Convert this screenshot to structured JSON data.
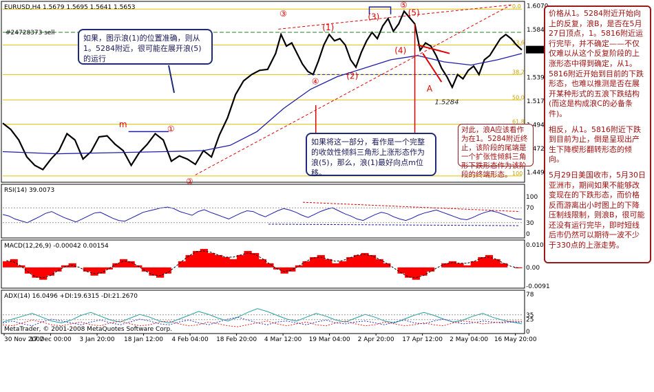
{
  "symbol_header": "EURUSD,H4  1.5679 1.5695 1.5641 1.5653",
  "order_label": "#24728373 sell",
  "copyright": "MetaTrader, © 2001-2008 MetaQuotes Software Corp.",
  "colors": {
    "price_line": "#000000",
    "ma_line": "#1c1ca8",
    "macd_fill": "#ff0000",
    "fib_line": "#e0c000",
    "annotation_red": "#e00000",
    "note_border": "#1e2a78",
    "side_border": "#9a1818"
  },
  "notes": {
    "top_left": "如果，图示浪(1)的位置准确，则从1。5284附近，很可能在展开浪(5)的运行",
    "bottom_middle": "如果将这一部分，看作是一个完整的收敛性倾斜三角形上涨形态作为浪(5)，那么，浪(1)最好向点m位移。",
    "right_small": "对此，浪A应该看作为在1。5284附近终止，该阶段的尾端是一个扩张性倾斜三角形下跌形态作为该阶段的终端形态。"
  },
  "side_panel": {
    "p1": "价格从1。5284附近开始向上的反复，浪B，是否在5月27日顶点，1。5816附近运行完毕，并不确定——不仅仅难以从这个反复阶段的上涨形态中得到确定，从1。5816附近开始到目前的下跌形态，也难以推测是否在展开某种形式的五浪下跌结构(而这是构成浪C的必备条件)。",
    "p2": "相反，从1。5816附近下跌到目前为止，倒是呈现出产生下降楔形翻转形态的倾向。",
    "p3": "5月29日美国收市，5月30日亚洲市，期间如果不能够改变现在的下跌形态，而价格反而游离出小时图上的下降压制线限制，则浪B，很可能还没有运行完毕，即时短线后市仍然可以期待一波不少于330点的上涨走势。"
  },
  "wave_labels": {
    "w3": "③",
    "w5": "⑤",
    "w4": "④",
    "w2": "②",
    "w1": "①",
    "p1": "(1)",
    "p2": "(2)",
    "p3": "(3)",
    "p4": "(4)",
    "p5": "(5)",
    "A": "A",
    "m": "m",
    "low_value": "1.5284"
  },
  "chart_data": [
    {
      "type": "line",
      "title": "EURUSD,H4",
      "x_ticks": [
        "30 Nov 2007",
        "17 Dec 00:00",
        "3 Jan 20:00",
        "18 Jan 12:00",
        "4 Feb 04:00",
        "18 Feb 20:00",
        "4 Mar 12:00",
        "19 Mar 04:00",
        "2 Apr 20:00",
        "17 Apr 12:00",
        "2 May 04:00",
        "16 May 20:00"
      ],
      "y_ticks": [
        "1.6070",
        "1.5845",
        "1.5653",
        "1.5395",
        "1.5170",
        "1.4945",
        "1.4720",
        "1.4495"
      ],
      "ylim": [
        1.442,
        1.61
      ],
      "current_price": "1.5653",
      "fib_levels": [
        {
          "label": "0.0",
          "value": 1.604
        },
        {
          "label": "23.6",
          "value": 1.57
        },
        {
          "label": "38.2",
          "value": 1.542
        },
        {
          "label": "50.0",
          "value": 1.518
        },
        {
          "label": "61.8",
          "value": 1.495
        },
        {
          "label": "100",
          "value": 1.446
        }
      ],
      "price_points": [
        [
          0,
          1.496
        ],
        [
          3,
          1.49
        ],
        [
          6,
          1.48
        ],
        [
          9,
          1.464
        ],
        [
          12,
          1.456
        ],
        [
          15,
          1.452
        ],
        [
          18,
          1.462
        ],
        [
          21,
          1.47
        ],
        [
          24,
          1.486
        ],
        [
          27,
          1.48
        ],
        [
          30,
          1.462
        ],
        [
          33,
          1.469
        ],
        [
          36,
          1.483
        ],
        [
          39,
          1.484
        ],
        [
          42,
          1.476
        ],
        [
          45,
          1.47
        ],
        [
          48,
          1.456
        ],
        [
          51,
          1.468
        ],
        [
          54,
          1.476
        ],
        [
          57,
          1.486
        ],
        [
          60,
          1.48
        ],
        [
          63,
          1.46
        ],
        [
          66,
          1.465
        ],
        [
          69,
          1.462
        ],
        [
          72,
          1.457
        ],
        [
          75,
          1.47
        ],
        [
          78,
          1.464
        ],
        [
          81,
          1.485
        ],
        [
          84,
          1.501
        ],
        [
          87,
          1.523
        ],
        [
          90,
          1.536
        ],
        [
          93,
          1.542
        ],
        [
          96,
          1.546
        ],
        [
          99,
          1.547
        ],
        [
          102,
          1.562
        ],
        [
          104,
          1.58
        ],
        [
          106,
          1.569
        ],
        [
          108,
          1.572
        ],
        [
          110,
          1.562
        ],
        [
          112,
          1.552
        ],
        [
          114,
          1.545
        ],
        [
          116,
          1.542
        ],
        [
          118,
          1.555
        ],
        [
          120,
          1.57
        ],
        [
          122,
          1.58
        ],
        [
          124,
          1.574
        ],
        [
          126,
          1.576
        ],
        [
          128,
          1.57
        ],
        [
          130,
          1.556
        ],
        [
          132,
          1.549
        ],
        [
          134,
          1.563
        ],
        [
          136,
          1.574
        ],
        [
          138,
          1.582
        ],
        [
          140,
          1.576
        ],
        [
          142,
          1.588
        ],
        [
          144,
          1.595
        ],
        [
          146,
          1.583
        ],
        [
          148,
          1.59
        ],
        [
          150,
          1.602
        ],
        [
          152,
          1.596
        ],
        [
          154,
          1.59
        ],
        [
          156,
          1.565
        ],
        [
          158,
          1.572
        ],
        [
          160,
          1.569
        ],
        [
          162,
          1.56
        ],
        [
          164,
          1.548
        ],
        [
          166,
          1.54
        ],
        [
          168,
          1.53
        ],
        [
          170,
          1.542
        ],
        [
          172,
          1.538
        ],
        [
          174,
          1.546
        ],
        [
          176,
          1.55
        ],
        [
          178,
          1.542
        ],
        [
          180,
          1.556
        ],
        [
          182,
          1.56
        ],
        [
          184,
          1.568
        ],
        [
          186,
          1.576
        ],
        [
          188,
          1.58
        ],
        [
          190,
          1.576
        ],
        [
          192,
          1.57
        ],
        [
          194,
          1.5653
        ]
      ],
      "ma_points": [
        [
          0,
          1.469
        ],
        [
          20,
          1.467
        ],
        [
          40,
          1.468
        ],
        [
          60,
          1.469
        ],
        [
          75,
          1.47
        ],
        [
          85,
          1.475
        ],
        [
          95,
          1.488
        ],
        [
          105,
          1.51
        ],
        [
          115,
          1.528
        ],
        [
          125,
          1.54
        ],
        [
          135,
          1.548
        ],
        [
          145,
          1.556
        ],
        [
          155,
          1.56
        ],
        [
          165,
          1.554
        ],
        [
          175,
          1.551
        ],
        [
          185,
          1.556
        ],
        [
          194,
          1.562
        ]
      ]
    },
    {
      "type": "line",
      "title": "RSI(14) 39.0073",
      "ylim": [
        0,
        100
      ],
      "y_ticks": [
        "100",
        "70",
        "30",
        "0"
      ],
      "values": [
        52,
        48,
        40,
        35,
        30,
        38,
        46,
        55,
        60,
        52,
        44,
        38,
        32,
        40,
        48,
        56,
        58,
        50,
        42,
        36,
        34,
        42,
        50,
        58,
        62,
        66,
        70,
        72,
        68,
        60,
        55,
        50,
        60,
        65,
        58,
        52,
        46,
        40,
        48,
        56,
        62,
        60,
        52,
        46,
        54,
        62,
        68,
        64,
        58,
        50,
        44,
        52,
        60,
        66,
        70,
        62,
        54,
        48,
        40,
        36,
        44,
        52,
        58,
        54,
        46,
        40,
        36,
        42,
        50,
        56,
        60,
        64,
        58,
        52,
        46,
        40,
        38,
        44,
        52,
        58,
        62,
        58,
        52,
        46,
        40,
        39
      ]
    },
    {
      "type": "bar",
      "title": "MACD(12,26,9) -0.00042 0.00154",
      "ylim": [
        -0.0091,
        0.01099
      ],
      "y_ticks": [
        "0.01099",
        "0.00",
        "-0.0091"
      ],
      "values": [
        0.003,
        0.004,
        0.001,
        -0.003,
        -0.005,
        -0.006,
        -0.004,
        -0.002,
        0.001,
        0.002,
        0.0,
        -0.002,
        -0.004,
        -0.003,
        -0.001,
        0.002,
        0.004,
        0.003,
        0.001,
        -0.002,
        -0.004,
        -0.005,
        -0.003,
        0.0,
        0.003,
        0.006,
        0.008,
        0.009,
        0.007,
        0.006,
        0.005,
        0.004,
        0.006,
        0.008,
        0.007,
        0.004,
        0.002,
        -0.001,
        -0.003,
        -0.002,
        0.001,
        0.003,
        0.005,
        0.006,
        0.004,
        0.002,
        0.003,
        0.005,
        0.006,
        0.007,
        0.006,
        0.004,
        0.002,
        0.0,
        -0.003,
        -0.005,
        -0.006,
        -0.004,
        -0.002,
        0.0,
        0.002,
        0.003,
        0.002,
        0.001,
        0.003,
        0.005,
        0.006,
        0.004,
        0.002,
        0.0,
        -0.0004
      ]
    },
    {
      "type": "line",
      "title": "ADX(14) 16.0496 +DI:19.6315 -DI:21.2670",
      "ylim": [
        0,
        78
      ],
      "y_ticks": [
        "78",
        "35",
        "25",
        "0"
      ],
      "series": [
        {
          "name": "ADX",
          "values": [
            20,
            26,
            32,
            38,
            30,
            22,
            18,
            24,
            34,
            40,
            32,
            24,
            20,
            28,
            36,
            30,
            22,
            18,
            26,
            34,
            42,
            36,
            28,
            22,
            30,
            40,
            48,
            42,
            34,
            26,
            22,
            30,
            38,
            32,
            24,
            20,
            28,
            36,
            30,
            22,
            18,
            26,
            34,
            40,
            34,
            26,
            20,
            24,
            32,
            38,
            30,
            24,
            20,
            16
          ]
        },
        {
          "name": "+DI",
          "values": [
            18,
            22,
            16,
            12,
            20,
            26,
            22,
            18,
            14,
            20,
            24,
            18,
            14,
            20,
            26,
            22,
            16,
            14,
            20,
            24,
            18,
            14,
            20,
            26,
            30,
            24,
            18,
            14,
            20,
            22,
            18,
            14,
            20,
            24,
            18,
            16,
            20,
            22,
            18,
            14,
            20,
            24,
            18,
            16,
            22,
            26,
            20,
            16,
            18,
            22,
            20,
            18,
            20,
            19.6
          ]
        },
        {
          "name": "-DI",
          "values": [
            14,
            12,
            18,
            24,
            20,
            14,
            12,
            16,
            20,
            14,
            12,
            18,
            22,
            16,
            12,
            14,
            20,
            22,
            16,
            12,
            14,
            20,
            16,
            12,
            10,
            14,
            18,
            22,
            16,
            12,
            16,
            20,
            14,
            12,
            18,
            22,
            16,
            12,
            14,
            20,
            16,
            12,
            14,
            18,
            14,
            12,
            18,
            22,
            20,
            16,
            18,
            20,
            22,
            21.3
          ]
        }
      ]
    }
  ]
}
